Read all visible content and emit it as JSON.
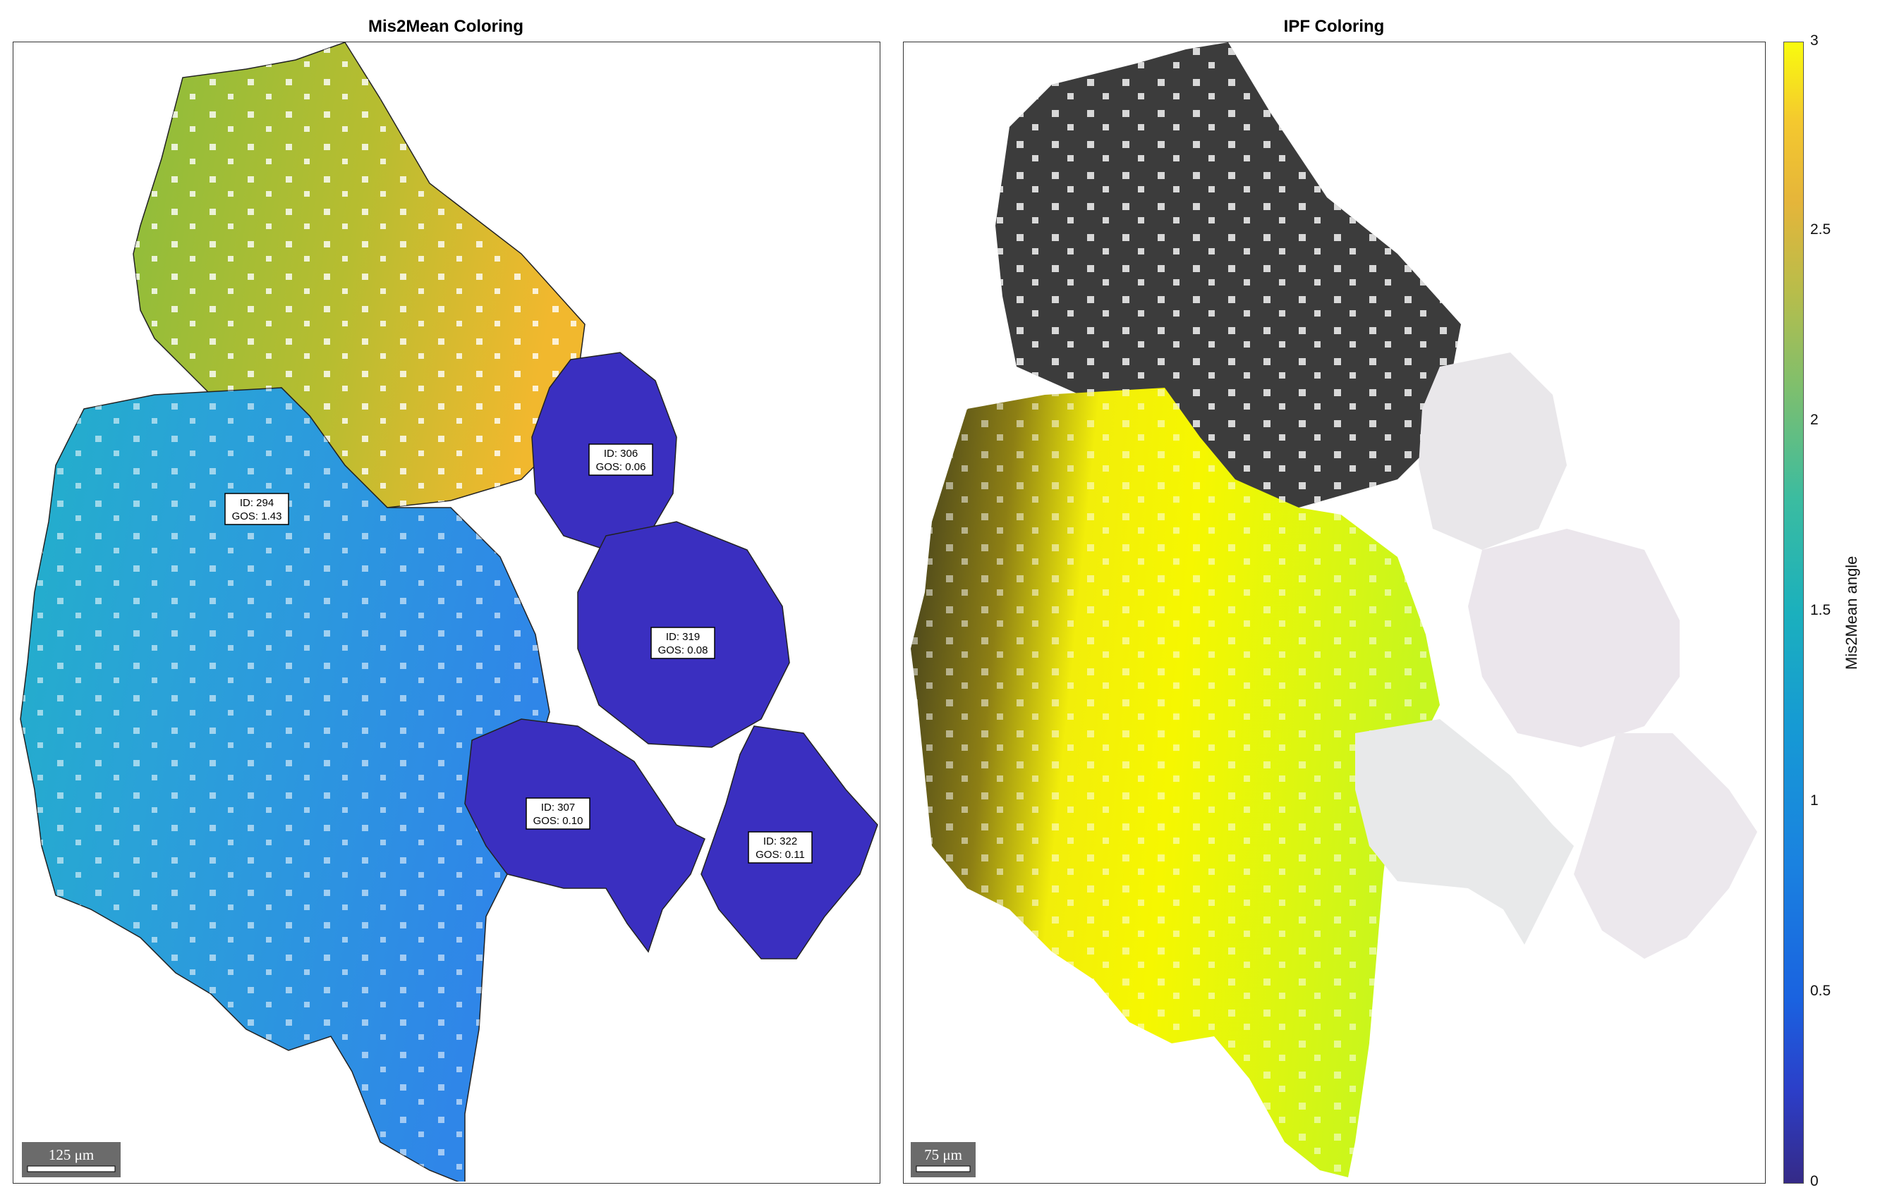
{
  "left_panel": {
    "title": "Mis2Mean Coloring",
    "scalebar": "125 μm",
    "grains": [
      {
        "id": "ID: 294",
        "gos": "GOS: 1.43"
      },
      {
        "id": "ID: 306",
        "gos": "GOS: 0.06"
      },
      {
        "id": "ID: 319",
        "gos": "GOS: 0.08"
      },
      {
        "id": "ID: 307",
        "gos": "GOS: 0.10"
      },
      {
        "id": "ID: 322",
        "gos": "GOS: 0.11"
      }
    ]
  },
  "right_panel": {
    "title": "IPF Coloring",
    "scalebar": "75 μm"
  },
  "colorbar": {
    "label": "Mis2Mean angle",
    "ticks": [
      "0",
      "0.5",
      "1",
      "1.5",
      "2",
      "2.5",
      "3"
    ],
    "min": 0,
    "max": 3,
    "colormap": "parula"
  },
  "colors": {
    "grain_blue": "#2f8fe6",
    "grain_cyan": "#22b7c8",
    "grain_green": "#8fbf3a",
    "grain_orange": "#f0b830",
    "grain_dark_blue": "#3b2fbf",
    "ipf_dark": "#3c3c3c",
    "ipf_yellow_green": "#d8f520",
    "ipf_pale": "#ece8ec"
  }
}
